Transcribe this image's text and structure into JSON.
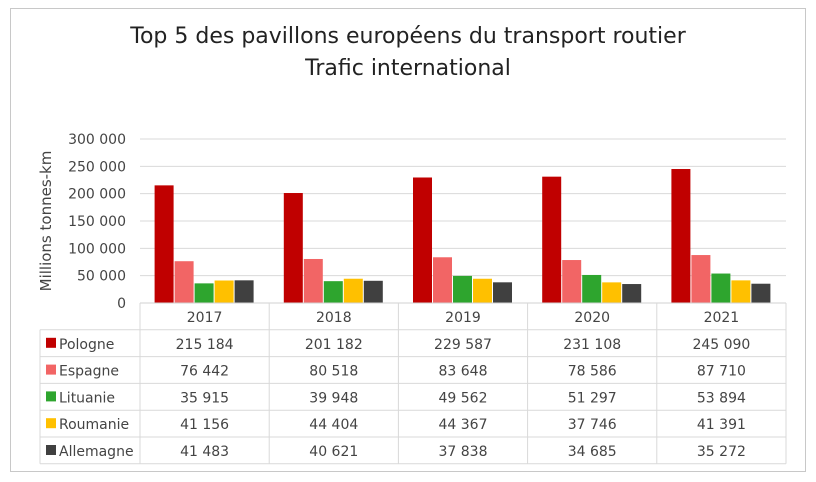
{
  "chart_data": {
    "type": "bar",
    "title": "Top 5 des pavillons européens du transport routier",
    "subtitle": "Trafic international",
    "ylabel": "Millions tonnes-km",
    "xlabel": "",
    "ylim": [
      0,
      300000
    ],
    "yticks": [
      0,
      50000,
      100000,
      150000,
      200000,
      250000,
      300000
    ],
    "ytick_labels": [
      "0",
      "50 000",
      "100 000",
      "150 000",
      "200 000",
      "250 000",
      "300 000"
    ],
    "grid": true,
    "legend": "data-table",
    "categories": [
      "2017",
      "2018",
      "2019",
      "2020",
      "2021"
    ],
    "series": [
      {
        "name": "Pologne",
        "color": "#c00000",
        "values": [
          215184,
          201182,
          229587,
          231108,
          245090
        ],
        "labels": [
          "215 184",
          "201 182",
          "229 587",
          "231 108",
          "245 090"
        ]
      },
      {
        "name": "Espagne",
        "color": "#f26565",
        "values": [
          76442,
          80518,
          83648,
          78586,
          87710
        ],
        "labels": [
          "76 442",
          "80 518",
          "83 648",
          "78 586",
          "87 710"
        ]
      },
      {
        "name": "Lituanie",
        "color": "#2ea52e",
        "values": [
          35915,
          39948,
          49562,
          51297,
          53894
        ],
        "labels": [
          "35 915",
          "39 948",
          "49 562",
          "51 297",
          "53 894"
        ]
      },
      {
        "name": "Roumanie",
        "color": "#ffc000",
        "values": [
          41156,
          44404,
          44367,
          37746,
          41391
        ],
        "labels": [
          "41 156",
          "44 404",
          "44 367",
          "37 746",
          "41 391"
        ]
      },
      {
        "name": "Allemagne",
        "color": "#404040",
        "values": [
          41483,
          40621,
          37838,
          34685,
          35272
        ],
        "labels": [
          "41 483",
          "40 621",
          "37 838",
          "34 685",
          "35 272"
        ]
      }
    ]
  }
}
